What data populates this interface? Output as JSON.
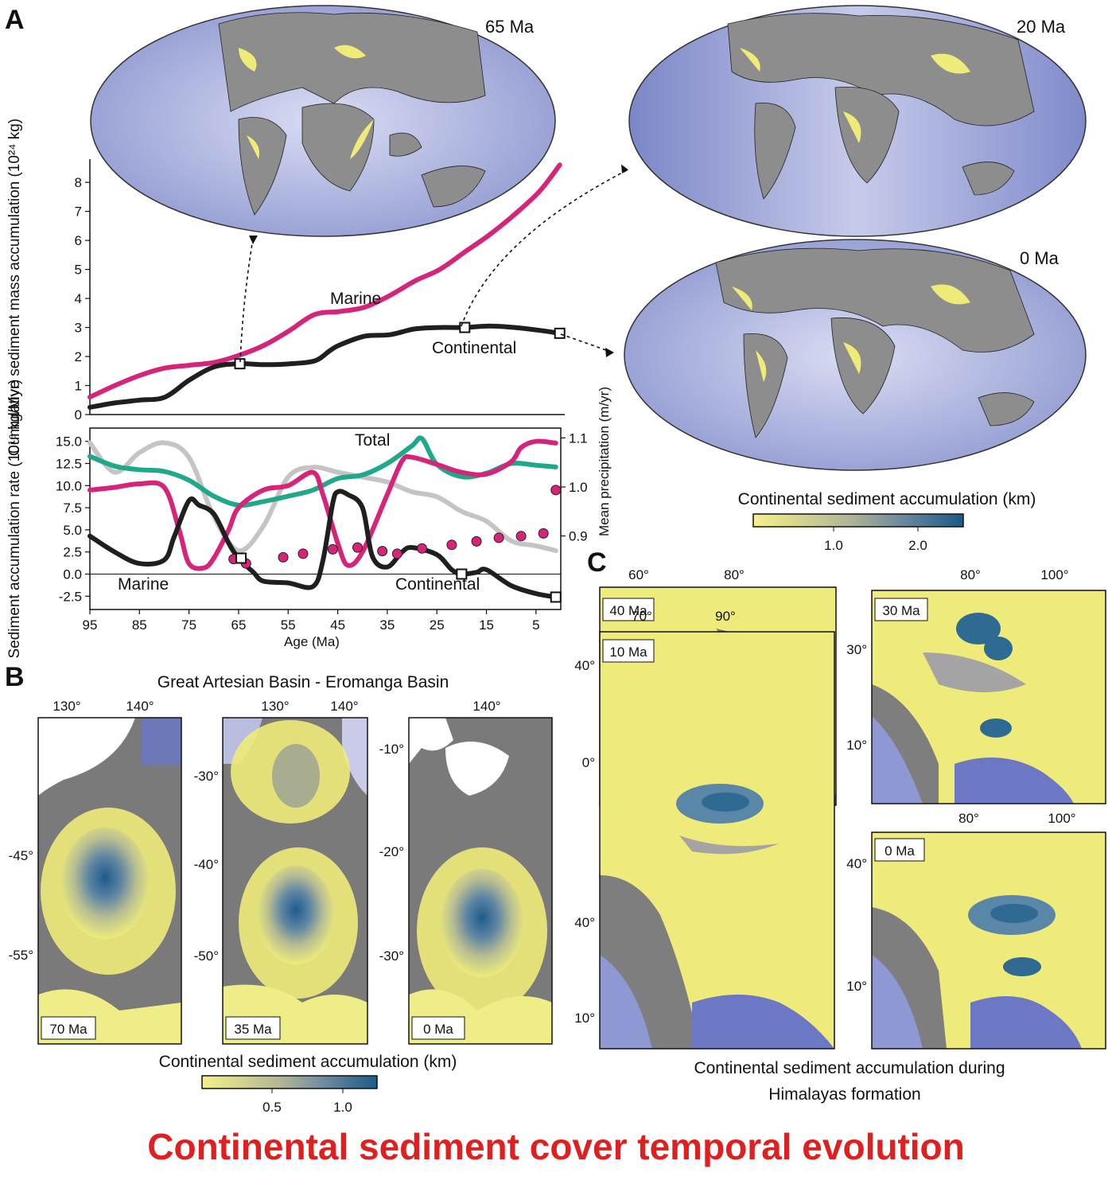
{
  "panels": {
    "a": "A",
    "b": "B",
    "c": "C"
  },
  "globes": {
    "g65": "65 Ma",
    "g20": "20 Ma",
    "g0": "0 Ma"
  },
  "panel_a_colorbar": {
    "title": "Continental sediment accumulation (km)",
    "ticks": [
      "1.0",
      "2.0"
    ]
  },
  "panel_b": {
    "title": "Great Artesian Basin - Eromanga Basin",
    "maps": [
      {
        "age": "70 Ma",
        "lon_ticks": [
          "130°",
          "140°"
        ],
        "lat_ticks": [
          "-45°",
          "-55°"
        ]
      },
      {
        "age": "35 Ma",
        "lon_ticks": [
          "130°",
          "140°"
        ],
        "lat_ticks": [
          "-30°",
          "-40°",
          "-50°"
        ]
      },
      {
        "age": "0 Ma",
        "lon_ticks": [
          "140°"
        ],
        "lat_ticks": [
          "-10°",
          "-20°",
          "-30°"
        ]
      }
    ],
    "colorbar_title": "Continental sediment accumulation (km)",
    "colorbar_ticks": [
      "0.5",
      "1.0"
    ]
  },
  "panel_c": {
    "maps": [
      {
        "age": "40 Ma",
        "lon_ticks": [
          "60°",
          "80°"
        ],
        "lat_ticks": [
          "40°",
          "0°"
        ]
      },
      {
        "age": "30 Ma",
        "lon_ticks": [
          "80°",
          "100°"
        ],
        "lat_ticks": [
          "30°",
          "10°"
        ]
      },
      {
        "age": "10 Ma",
        "lon_ticks": [
          "70°",
          "90°"
        ],
        "lat_ticks": [
          "40°",
          "10°"
        ]
      },
      {
        "age": "0 Ma",
        "lon_ticks": [
          "80°",
          "100°"
        ],
        "lat_ticks": [
          "40°",
          "10°"
        ]
      }
    ],
    "caption_line1": "Continental sediment accumulation during",
    "caption_line2": "Himalayas formation"
  },
  "footer_title": "Continental sediment cover temporal evolution",
  "colors": {
    "marine": "#d6247a",
    "continental": "#1f1f1f",
    "total": "#1fa88a",
    "precip": "#c4c4c4",
    "ocean": "#aab3dd",
    "land": "#8c8c8c",
    "sediment_low": "#f2f08c",
    "sediment_high": "#1d5f8c",
    "title_red": "#e02020"
  },
  "chart_data": [
    {
      "type": "line",
      "title": "",
      "xlabel": "",
      "ylabel": "Cumulative sediment mass accumulation (10²⁴ kg)",
      "xlim": [
        95,
        0
      ],
      "ylim": [
        0,
        8.8
      ],
      "yticks": [
        "0",
        "1",
        "2",
        "3",
        "4",
        "5",
        "6",
        "7",
        "8"
      ],
      "series": [
        {
          "name": "Marine",
          "x": [
            95,
            90,
            85,
            80,
            75,
            70,
            65,
            60,
            55,
            50,
            45,
            40,
            35,
            30,
            25,
            20,
            15,
            10,
            5,
            1
          ],
          "y": [
            0.6,
            1.0,
            1.35,
            1.6,
            1.7,
            1.8,
            2.05,
            2.4,
            2.9,
            3.45,
            3.55,
            3.7,
            4.1,
            4.6,
            5.0,
            5.6,
            6.2,
            6.9,
            7.7,
            8.6
          ]
        },
        {
          "name": "Continental",
          "x": [
            95,
            90,
            85,
            80,
            75,
            70,
            65,
            60,
            55,
            50,
            47,
            45,
            40,
            35,
            30,
            25,
            20,
            15,
            10,
            5,
            1
          ],
          "y": [
            0.25,
            0.4,
            0.5,
            0.6,
            1.2,
            1.65,
            1.75,
            1.72,
            1.75,
            1.85,
            2.2,
            2.4,
            2.7,
            2.75,
            2.95,
            3.0,
            3.0,
            3.05,
            3.0,
            2.9,
            2.8
          ]
        }
      ],
      "markers": [
        {
          "x": 65,
          "y": 1.75
        },
        {
          "x": 20,
          "y": 3.0
        },
        {
          "x": 1,
          "y": 2.8
        }
      ],
      "annotations": [
        "Marine",
        "Continental"
      ]
    },
    {
      "type": "line",
      "title": "",
      "xlabel": "Age (Ma)",
      "ylabel": "Sediment accumulation rate (10¹⁶ kg/Myr)",
      "y2label": "Mean precipitation (m/yr)",
      "xlim": [
        95,
        0
      ],
      "ylim": [
        -4,
        16.5
      ],
      "y2lim": [
        0.75,
        1.12
      ],
      "xticks": [
        "95",
        "85",
        "75",
        "65",
        "55",
        "45",
        "35",
        "25",
        "15",
        "5"
      ],
      "yticks": [
        "-2.5",
        "0.0",
        "2.5",
        "5.0",
        "7.5",
        "10.0",
        "12.5",
        "15.0"
      ],
      "y2ticks": [
        "0.9",
        "1.0",
        "1.1"
      ],
      "series": [
        {
          "name": "Total",
          "x": [
            95,
            90,
            85,
            80,
            75,
            70,
            65,
            60,
            55,
            50,
            45,
            40,
            35,
            30,
            28,
            25,
            20,
            15,
            10,
            5,
            1
          ],
          "y": [
            13.3,
            12.2,
            11.8,
            11.6,
            10.6,
            8.8,
            7.8,
            8.2,
            8.8,
            9.5,
            10.8,
            11.2,
            12.5,
            14.5,
            15.3,
            12.4,
            11.0,
            11.4,
            12.5,
            12.3,
            12.1
          ]
        },
        {
          "name": "Marine",
          "x": [
            95,
            90,
            85,
            80,
            77,
            75,
            72,
            70,
            67,
            65,
            60,
            55,
            50,
            48,
            45,
            43,
            40,
            35,
            32,
            30,
            25,
            20,
            15,
            10,
            8,
            5,
            1
          ],
          "y": [
            9.5,
            9.8,
            10.2,
            9.8,
            5.0,
            1.2,
            0.7,
            1.8,
            5.0,
            7.5,
            9.5,
            10.0,
            11.5,
            9.0,
            3.5,
            1.0,
            2.5,
            9.0,
            12.8,
            13.2,
            12.4,
            11.5,
            11.3,
            12.7,
            14.3,
            15.0,
            14.8
          ]
        },
        {
          "name": "Continental",
          "x": [
            95,
            90,
            85,
            80,
            78,
            75,
            73,
            70,
            67,
            65,
            62,
            60,
            55,
            50,
            48,
            46,
            45,
            43,
            40,
            38,
            35,
            32,
            30,
            25,
            22,
            20,
            17,
            15,
            10,
            5,
            1
          ],
          "y": [
            4.3,
            2.5,
            1.2,
            1.6,
            4.2,
            8.3,
            7.8,
            6.8,
            3.5,
            1.8,
            0.2,
            -0.8,
            -1.0,
            -1.4,
            1.5,
            8.0,
            9.3,
            9.0,
            7.5,
            2.0,
            0.8,
            2.5,
            3.0,
            2.2,
            0.5,
            0.0,
            0.2,
            0.5,
            -1.3,
            -2.2,
            -2.6
          ]
        },
        {
          "name": "Mean precipitation",
          "axis": "right",
          "x": [
            95,
            90,
            85,
            80,
            75,
            70,
            65,
            60,
            55,
            50,
            45,
            40,
            35,
            30,
            25,
            20,
            15,
            10,
            5,
            1
          ],
          "y": [
            1.09,
            1.03,
            1.07,
            1.09,
            1.06,
            0.94,
            0.87,
            0.92,
            1.02,
            1.04,
            1.03,
            1.02,
            1.01,
            0.99,
            0.98,
            0.95,
            0.93,
            0.89,
            0.88,
            0.87
          ]
        }
      ],
      "points": {
        "name": "Marine dots",
        "x": [
          66,
          63.5,
          56,
          52,
          46,
          41,
          36,
          33,
          28,
          22,
          17,
          12.5,
          8,
          3.5,
          1
        ],
        "y": [
          1.7,
          1.2,
          1.9,
          2.3,
          2.8,
          3.0,
          2.6,
          2.3,
          2.9,
          3.3,
          3.7,
          4.1,
          4.3,
          4.6,
          9.5
        ]
      },
      "markers": [
        {
          "x": 64.5,
          "y": 1.8
        },
        {
          "x": 20,
          "y": 0.0
        },
        {
          "x": 1,
          "y": -2.6
        }
      ],
      "annotations": [
        "Total",
        "Marine",
        "Continental"
      ]
    }
  ]
}
